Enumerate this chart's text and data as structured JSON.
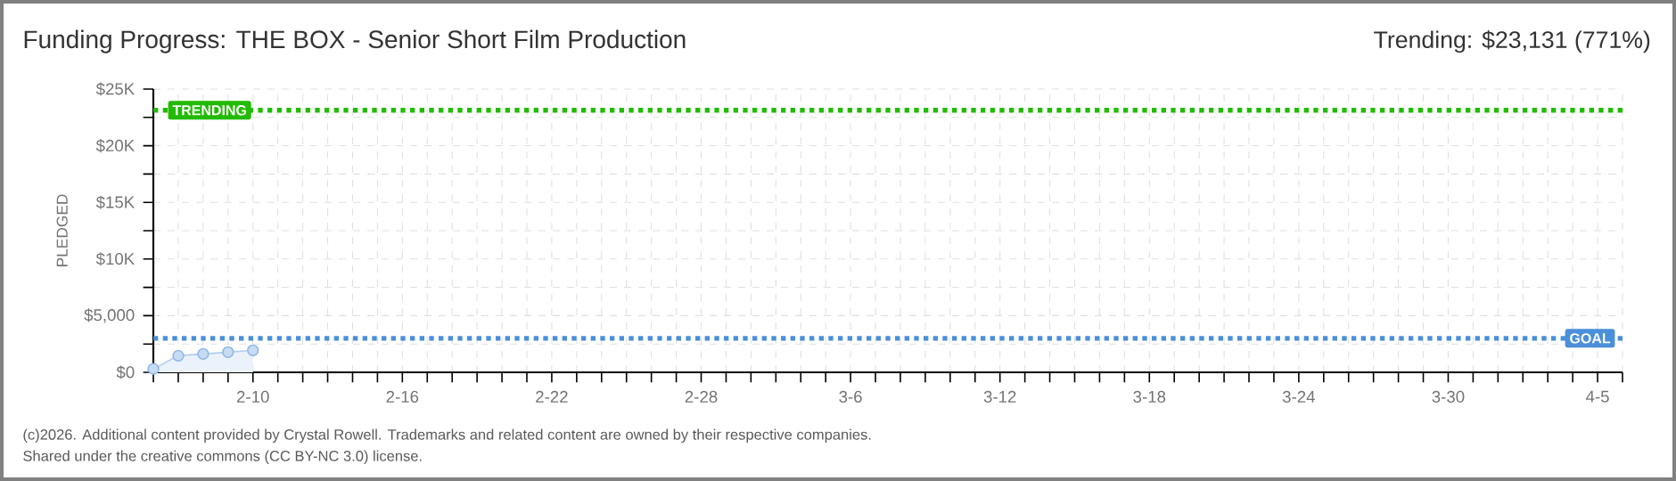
{
  "chart_data": {
    "type": "area",
    "title": "Funding Progress: THE BOX - Senior Short Film Production",
    "ylabel": "PLEDGED",
    "annotations": [
      "Trending: $23,131 (771%)",
      "(c)2026. Additional content provided by Crystal Rowell. Trademarks and related content are owned by their respective companies.",
      "Shared under the creative commons (CC BY-NC 3.0) license."
    ],
    "x": [
      "2026-02-06",
      "2026-02-07",
      "2026-02-08",
      "2026-02-09",
      "2026-02-10"
    ],
    "series": [
      {
        "color": "#8fb8e8",
        "values": [
          300,
          1460,
          1620,
          1780,
          1940
        ]
      }
    ],
    "marker": "circle",
    "grid": true,
    "xlim": [
      "2026-02-06",
      "2026-04-06"
    ],
    "ylim": [
      0,
      25000
    ],
    "yticks": [
      {
        "value": 0,
        "label": "$0"
      },
      {
        "value": 2500,
        "label": null
      },
      {
        "value": 5000,
        "label": "$5,000"
      },
      {
        "value": 7500,
        "label": null
      },
      {
        "value": 10000,
        "label": "$10K"
      },
      {
        "value": 12500,
        "label": null
      },
      {
        "value": 15000,
        "label": "$15K"
      },
      {
        "value": 17500,
        "label": null
      },
      {
        "value": 20000,
        "label": "$20K"
      },
      {
        "value": 22500,
        "label": null
      },
      {
        "value": 25000,
        "label": "$25K"
      }
    ],
    "xticks": [
      {
        "value": "2026-02-06",
        "label": null
      },
      {
        "value": "2026-02-07",
        "label": null
      },
      {
        "value": "2026-02-08",
        "label": null
      },
      {
        "value": "2026-02-09",
        "label": null
      },
      {
        "value": "2026-02-10",
        "label": "2-10"
      },
      {
        "value": "2026-02-11",
        "label": null
      },
      {
        "value": "2026-02-12",
        "label": null
      },
      {
        "value": "2026-02-13",
        "label": null
      },
      {
        "value": "2026-02-14",
        "label": null
      },
      {
        "value": "2026-02-15",
        "label": null
      },
      {
        "value": "2026-02-16",
        "label": "2-16"
      },
      {
        "value": "2026-02-17",
        "label": null
      },
      {
        "value": "2026-02-18",
        "label": null
      },
      {
        "value": "2026-02-19",
        "label": null
      },
      {
        "value": "2026-02-20",
        "label": null
      },
      {
        "value": "2026-02-21",
        "label": null
      },
      {
        "value": "2026-02-22",
        "label": "2-22"
      },
      {
        "value": "2026-02-23",
        "label": null
      },
      {
        "value": "2026-02-24",
        "label": null
      },
      {
        "value": "2026-02-25",
        "label": null
      },
      {
        "value": "2026-02-26",
        "label": null
      },
      {
        "value": "2026-02-27",
        "label": null
      },
      {
        "value": "2026-02-28",
        "label": "2-28"
      },
      {
        "value": "2026-03-01",
        "label": null
      },
      {
        "value": "2026-03-02",
        "label": null
      },
      {
        "value": "2026-03-03",
        "label": null
      },
      {
        "value": "2026-03-04",
        "label": null
      },
      {
        "value": "2026-03-05",
        "label": null
      },
      {
        "value": "2026-03-06",
        "label": "3-6"
      },
      {
        "value": "2026-03-07",
        "label": null
      },
      {
        "value": "2026-03-08",
        "label": null
      },
      {
        "value": "2026-03-09",
        "label": null
      },
      {
        "value": "2026-03-10",
        "label": null
      },
      {
        "value": "2026-03-11",
        "label": null
      },
      {
        "value": "2026-03-12",
        "label": "3-12"
      },
      {
        "value": "2026-03-13",
        "label": null
      },
      {
        "value": "2026-03-14",
        "label": null
      },
      {
        "value": "2026-03-15",
        "label": null
      },
      {
        "value": "2026-03-16",
        "label": null
      },
      {
        "value": "2026-03-17",
        "label": null
      },
      {
        "value": "2026-03-18",
        "label": "3-18"
      },
      {
        "value": "2026-03-19",
        "label": null
      },
      {
        "value": "2026-03-20",
        "label": null
      },
      {
        "value": "2026-03-21",
        "label": null
      },
      {
        "value": "2026-03-22",
        "label": null
      },
      {
        "value": "2026-03-23",
        "label": null
      },
      {
        "value": "2026-03-24",
        "label": "3-24"
      },
      {
        "value": "2026-03-25",
        "label": null
      },
      {
        "value": "2026-03-26",
        "label": null
      },
      {
        "value": "2026-03-27",
        "label": null
      },
      {
        "value": "2026-03-28",
        "label": null
      },
      {
        "value": "2026-03-29",
        "label": null
      },
      {
        "value": "2026-03-30",
        "label": "3-30"
      },
      {
        "value": "2026-03-31",
        "label": null
      },
      {
        "value": "2026-04-01",
        "label": null
      },
      {
        "value": "2026-04-02",
        "label": null
      },
      {
        "value": "2026-04-03",
        "label": null
      },
      {
        "value": "2026-04-04",
        "label": null
      },
      {
        "value": "2026-04-05",
        "label": "4-5"
      },
      {
        "value": "2026-04-06",
        "label": null
      }
    ],
    "ref_lines": [
      {
        "axis": "y",
        "value": 23131,
        "label": "TRENDING",
        "color": "#22bb00",
        "line_style": "dotted"
      },
      {
        "axis": "y",
        "value": 3000,
        "label": "GOAL",
        "color": "#4a8fd9",
        "line_style": "dotted"
      }
    ]
  }
}
